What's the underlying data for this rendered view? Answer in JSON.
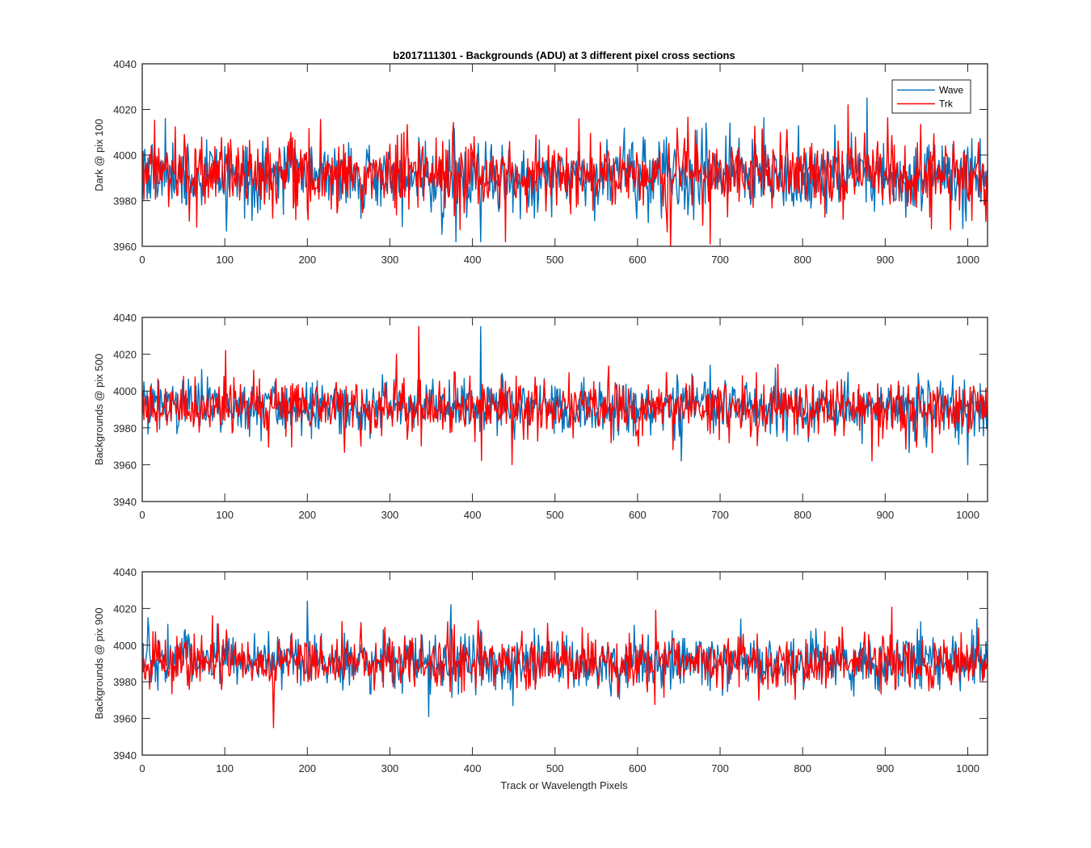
{
  "chart_data": {
    "type": "line",
    "title": "b2017111301 - Backgrounds (ADU) at 3 different pixel cross sections",
    "xlabel": "Track or Wavelength Pixels",
    "xlim": [
      0,
      1024
    ],
    "xticks": [
      0,
      100,
      200,
      300,
      400,
      500,
      600,
      700,
      800,
      900,
      1000
    ],
    "grid": false,
    "legend": {
      "location": "top-right",
      "entries": [
        "Wave",
        "Trk"
      ]
    },
    "colors": {
      "Wave": "#0072bd",
      "Trk": "#ff0000"
    },
    "subplots": [
      {
        "ylabel": "Dark @ pix 100",
        "ylim": [
          3960,
          4040
        ],
        "yticks": [
          3960,
          3980,
          4000,
          4020,
          4040
        ],
        "mean": 3991,
        "noise_sd": 7.5,
        "seed": 11,
        "series": [
          {
            "name": "Wave",
            "features": [
              [
                380,
                3962
              ],
              [
                878,
                4025
              ],
              [
                410,
                3962
              ]
            ]
          },
          {
            "name": "Trk",
            "features": [
              [
                640,
                3960
              ],
              [
                855,
                4022
              ],
              [
                688,
                3961
              ],
              [
                440,
                3962
              ]
            ]
          }
        ]
      },
      {
        "ylabel": "Backgrounds @ pix 500",
        "ylim": [
          3940,
          4040
        ],
        "yticks": [
          3940,
          3960,
          3980,
          4000,
          4020,
          4040
        ],
        "mean": 3991,
        "noise_sd": 7,
        "seed": 23,
        "series": [
          {
            "name": "Wave",
            "features": [
              [
                410,
                4035
              ],
              [
                1000,
                3960
              ],
              [
                653,
                3962
              ]
            ]
          },
          {
            "name": "Trk",
            "features": [
              [
                335,
                4035
              ],
              [
                448,
                3960
              ],
              [
                101,
                4022
              ],
              [
                308,
                4020
              ],
              [
                884,
                3962
              ]
            ]
          }
        ]
      },
      {
        "ylabel": "Backgrounds @ pix 900",
        "ylim": [
          3940,
          4040
        ],
        "yticks": [
          3940,
          3960,
          3980,
          4000,
          4020,
          4040
        ],
        "mean": 3991,
        "noise_sd": 7,
        "seed": 37,
        "series": [
          {
            "name": "Wave",
            "features": [
              [
                200,
                4024
              ],
              [
                374,
                4022
              ],
              [
                347,
                3961
              ]
            ]
          },
          {
            "name": "Trk",
            "features": [
              [
                159,
                3955
              ],
              [
                622,
                4019
              ],
              [
                85,
                4016
              ]
            ]
          }
        ]
      }
    ]
  }
}
